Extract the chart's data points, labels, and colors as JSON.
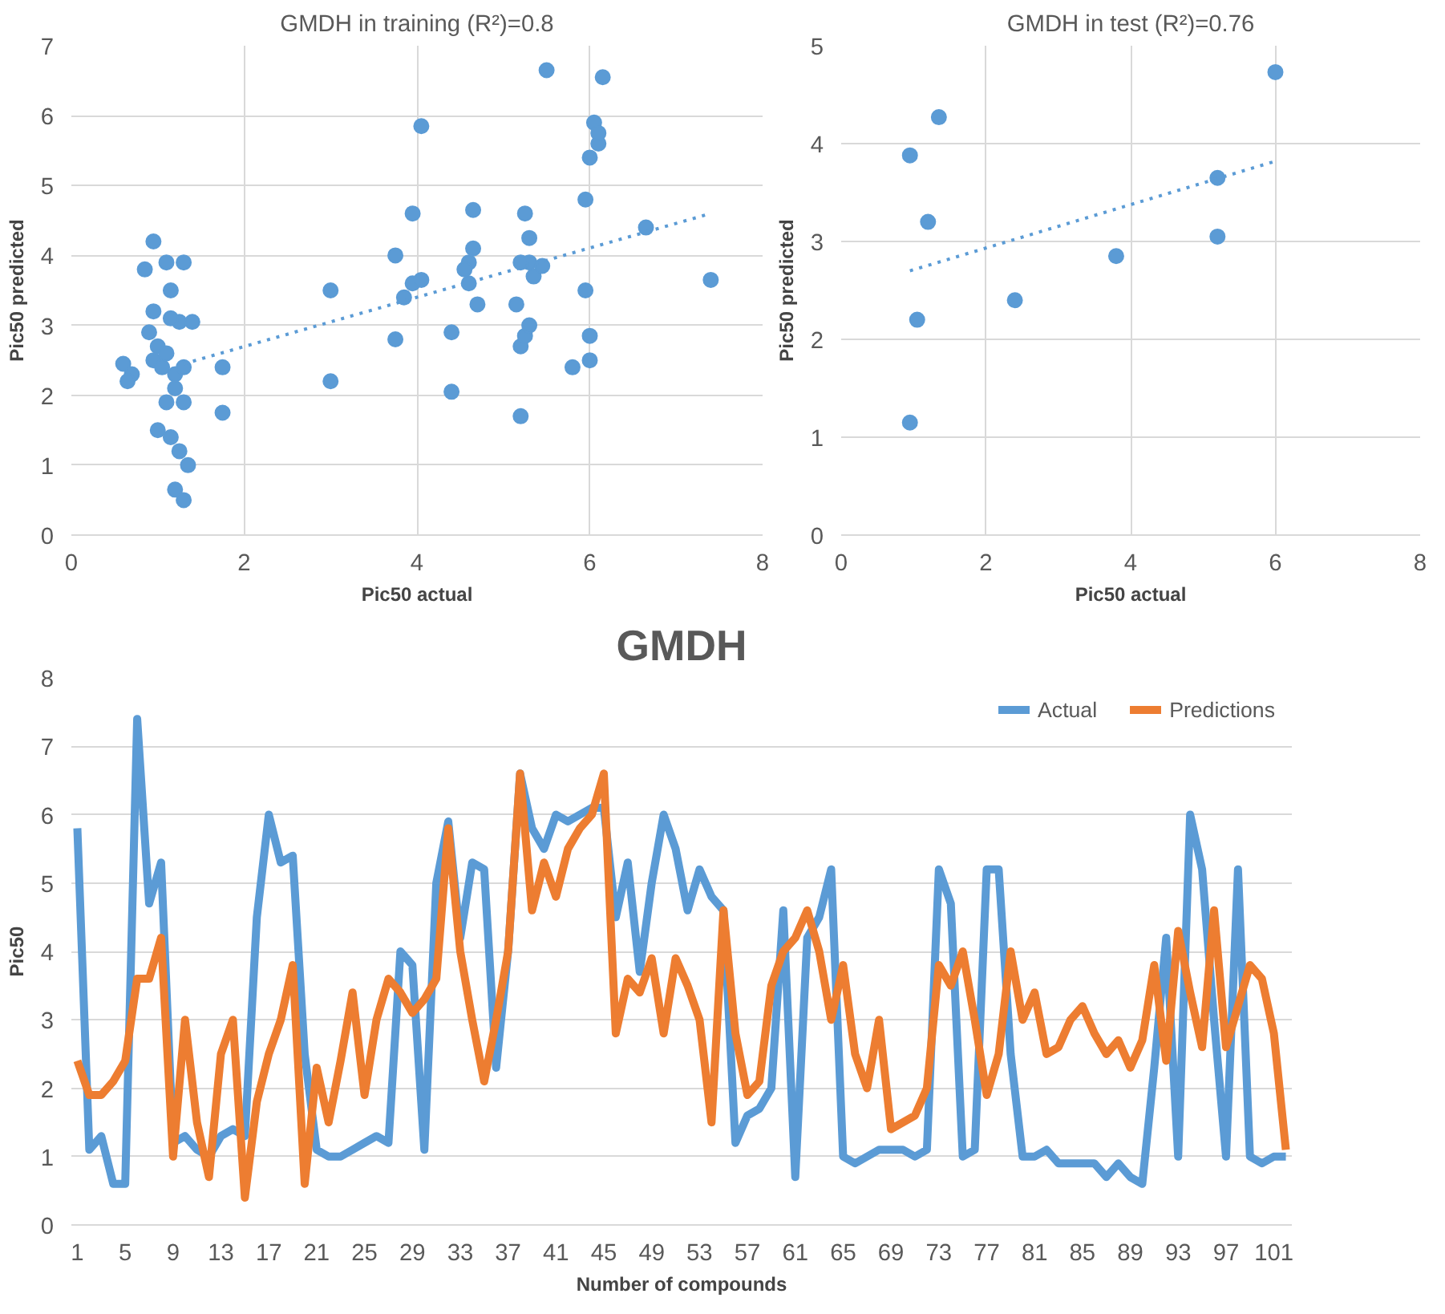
{
  "chart_data": [
    {
      "type": "scatter",
      "title": "GMDH in training (R²)=0.8",
      "xlabel": "Pic50 actual",
      "ylabel": "Pic50 predicted",
      "xlim": [
        0,
        8
      ],
      "xticks": [
        0,
        2,
        4,
        6,
        8
      ],
      "ylim": [
        0,
        7
      ],
      "yticks": [
        0,
        1,
        2,
        3,
        4,
        5,
        6,
        7
      ],
      "grid": true,
      "legend": false,
      "series": [
        {
          "type": "scatter",
          "marker": "circle",
          "color": "#5b9bd5",
          "x": [
            0.6,
            0.7,
            0.65,
            0.95,
            0.85,
            1.1,
            1.3,
            1.15,
            0.95,
            0.9,
            1.0,
            0.95,
            1.05,
            1.1,
            1.2,
            1.3,
            1.25,
            1.4,
            1.15,
            1.2,
            1.3,
            1.1,
            1.0,
            1.15,
            1.25,
            1.35,
            1.2,
            1.3,
            1.75,
            1.75,
            3.0,
            3.0,
            3.75,
            3.75,
            3.85,
            3.95,
            4.05,
            3.95,
            4.05,
            4.4,
            4.4,
            4.6,
            4.65,
            4.65,
            4.6,
            4.7,
            4.55,
            5.5,
            5.15,
            5.2,
            5.2,
            5.25,
            5.3,
            5.3,
            5.25,
            5.3,
            5.35,
            5.2,
            5.45,
            5.8,
            5.95,
            5.95,
            6.0,
            6.0,
            6.0,
            6.1,
            6.05,
            6.1,
            6.15,
            6.65,
            7.4
          ],
          "values": [
            2.45,
            2.3,
            2.2,
            4.2,
            3.8,
            3.9,
            3.9,
            3.5,
            3.2,
            2.9,
            2.7,
            2.5,
            2.4,
            2.6,
            2.3,
            2.4,
            3.05,
            3.05,
            3.1,
            2.1,
            1.9,
            1.9,
            1.5,
            1.4,
            1.2,
            1.0,
            0.65,
            0.5,
            2.4,
            1.75,
            3.5,
            2.2,
            4.0,
            2.8,
            3.4,
            3.6,
            3.65,
            4.6,
            5.85,
            2.9,
            2.05,
            3.9,
            4.65,
            4.1,
            3.6,
            3.3,
            3.8,
            6.65,
            3.3,
            1.7,
            2.7,
            2.85,
            3.0,
            3.9,
            4.6,
            4.25,
            3.7,
            3.9,
            3.85,
            2.4,
            3.5,
            4.8,
            2.85,
            2.5,
            5.4,
            5.6,
            5.9,
            5.75,
            6.55,
            4.4,
            3.65
          ]
        },
        {
          "type": "line",
          "color": "#5b9bd5",
          "line_style": "dotted",
          "x": [
            1.3,
            7.4
          ],
          "values": [
            2.45,
            4.6
          ]
        }
      ]
    },
    {
      "type": "scatter",
      "title": "GMDH in test (R²)=0.76",
      "xlabel": "Pic50 actual",
      "ylabel": "Pic50 predicted",
      "xlim": [
        0,
        8
      ],
      "xticks": [
        0,
        2,
        4,
        6,
        8
      ],
      "ylim": [
        0,
        5
      ],
      "yticks": [
        0,
        1,
        2,
        3,
        4,
        5
      ],
      "grid": true,
      "legend": false,
      "series": [
        {
          "type": "scatter",
          "marker": "circle",
          "color": "#5b9bd5",
          "x": [
            0.95,
            1.05,
            0.95,
            1.2,
            1.35,
            2.4,
            3.8,
            5.2,
            5.2,
            6.0
          ],
          "values": [
            1.15,
            2.2,
            3.88,
            3.2,
            4.27,
            2.4,
            2.85,
            3.05,
            3.65,
            4.73
          ]
        },
        {
          "type": "line",
          "color": "#5b9bd5",
          "line_style": "dotted",
          "x": [
            0.95,
            6.0
          ],
          "values": [
            2.7,
            3.82
          ]
        }
      ]
    },
    {
      "type": "line",
      "title": "GMDH",
      "xlabel": "Number of compounds",
      "ylabel": "Pic50",
      "xlim": [
        0.5,
        102.5
      ],
      "xticks": [
        1,
        5,
        9,
        13,
        17,
        21,
        25,
        29,
        33,
        37,
        41,
        45,
        49,
        53,
        57,
        61,
        65,
        69,
        73,
        77,
        81,
        85,
        89,
        93,
        97,
        101
      ],
      "ylim": [
        0,
        8
      ],
      "yticks": [
        0,
        1,
        2,
        3,
        4,
        5,
        6,
        7,
        8
      ],
      "grid": "y",
      "legend": "top right",
      "line_style": "solid",
      "x": [
        1,
        2,
        3,
        4,
        5,
        6,
        7,
        8,
        9,
        10,
        11,
        12,
        13,
        14,
        15,
        16,
        17,
        18,
        19,
        20,
        21,
        22,
        23,
        24,
        25,
        26,
        27,
        28,
        29,
        30,
        31,
        32,
        33,
        34,
        35,
        36,
        37,
        38,
        39,
        40,
        41,
        42,
        43,
        44,
        45,
        46,
        47,
        48,
        49,
        50,
        51,
        52,
        53,
        54,
        55,
        56,
        57,
        58,
        59,
        60,
        61,
        62,
        63,
        64,
        65,
        66,
        67,
        68,
        69,
        70,
        71,
        72,
        73,
        74,
        75,
        76,
        77,
        78,
        79,
        80,
        81,
        82,
        83,
        84,
        85,
        86,
        87,
        88,
        89,
        90,
        91,
        92,
        93,
        94,
        95,
        96,
        97,
        98,
        99,
        100,
        101,
        102
      ],
      "series": [
        {
          "name": "Actual",
          "color": "#5b9bd5",
          "values": [
            5.8,
            1.1,
            1.3,
            0.6,
            0.6,
            7.4,
            4.7,
            5.3,
            1.2,
            1.3,
            1.1,
            1.0,
            1.3,
            1.4,
            1.3,
            4.5,
            6.0,
            5.3,
            5.4,
            2.5,
            1.1,
            1.0,
            1.0,
            1.1,
            1.2,
            1.3,
            1.2,
            4.0,
            3.8,
            1.1,
            5.0,
            5.9,
            4.2,
            5.3,
            5.2,
            2.3,
            4.0,
            6.6,
            5.8,
            5.5,
            6.0,
            5.9,
            6.0,
            6.1,
            6.1,
            4.5,
            5.3,
            3.7,
            5.0,
            6.0,
            5.5,
            4.6,
            5.2,
            4.8,
            4.6,
            1.2,
            1.6,
            1.7,
            2.0,
            4.6,
            0.7,
            4.2,
            4.5,
            5.2,
            1.0,
            0.9,
            1.0,
            1.1,
            1.1,
            1.1,
            1.0,
            1.1,
            5.2,
            4.7,
            1.0,
            1.1,
            5.2,
            5.2,
            2.5,
            1.0,
            1.0,
            1.1,
            0.9,
            0.9,
            0.9,
            0.9,
            0.7,
            0.9,
            0.7,
            0.6,
            2.3,
            4.2,
            1.0,
            6.0,
            5.2,
            3.0,
            1.0,
            5.2,
            1.0,
            0.9,
            1.0,
            1.0
          ]
        },
        {
          "name": "Predictions",
          "color": "#ed7d31",
          "values": [
            2.4,
            1.9,
            1.9,
            2.1,
            2.4,
            3.6,
            3.6,
            4.2,
            1.0,
            3.0,
            1.5,
            0.7,
            2.5,
            3.0,
            0.4,
            1.8,
            2.5,
            3.0,
            3.8,
            0.6,
            2.3,
            1.5,
            2.4,
            3.4,
            1.9,
            3.0,
            3.6,
            3.4,
            3.1,
            3.3,
            3.6,
            5.8,
            4.0,
            3.0,
            2.1,
            3.0,
            4.0,
            6.6,
            4.6,
            5.3,
            4.8,
            5.5,
            5.8,
            6.0,
            6.6,
            2.8,
            3.6,
            3.4,
            3.9,
            2.8,
            3.9,
            3.5,
            3.0,
            1.5,
            4.6,
            2.8,
            1.9,
            2.1,
            3.5,
            4.0,
            4.2,
            4.6,
            4.0,
            3.0,
            3.8,
            2.5,
            2.0,
            3.0,
            1.4,
            1.5,
            1.6,
            2.0,
            3.8,
            3.5,
            4.0,
            3.0,
            1.9,
            2.5,
            4.0,
            3.0,
            3.4,
            2.5,
            2.6,
            3.0,
            3.2,
            2.8,
            2.5,
            2.7,
            2.3,
            2.7,
            3.8,
            2.4,
            4.3,
            3.4,
            2.6,
            4.6,
            2.6,
            3.2,
            3.8,
            3.6,
            2.8,
            1.1
          ]
        }
      ]
    }
  ]
}
